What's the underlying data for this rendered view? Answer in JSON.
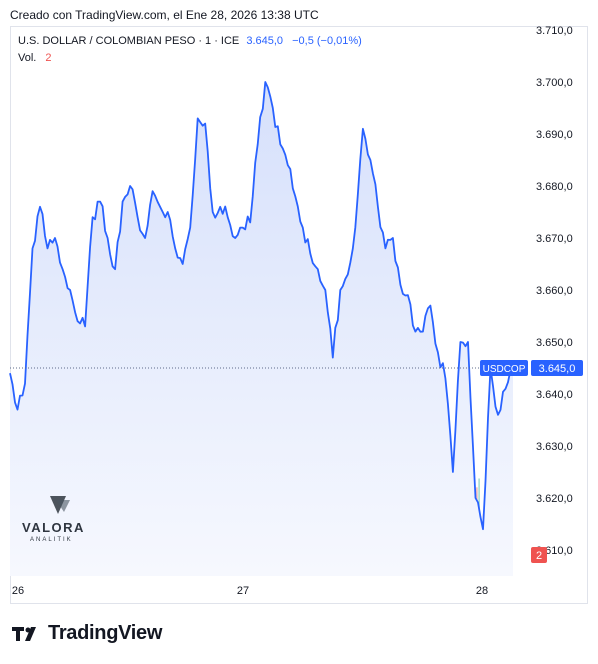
{
  "caption": "Creado con TradingView.com, el Ene 28, 2026 13:38 UTC",
  "legend": {
    "symbol": "U.S. DOLLAR / COLOMBIAN PESO · 1 · ICE",
    "last": "3.645,0",
    "change": "−0,5 (−0,01%)",
    "volume_label": "Vol.",
    "volume_value": "2"
  },
  "watermark": {
    "name": "VALORA",
    "sub": "ANALITIK"
  },
  "footer": {
    "brand": "TradingView"
  },
  "colors": {
    "line": "#2962ff",
    "area_top": "#dbe4fb",
    "area_bottom": "#f4f6fd",
    "vol_up": "#8fd4c7",
    "vol_down": "#f2a7a3",
    "price_tag": "#2962ff",
    "vol_tag": "#ef5350"
  },
  "chart_data": {
    "type": "area",
    "symbol_tag": "USDCOP",
    "price_label": "3.645,0",
    "volume_label": "2",
    "y_ticks": [
      "3.710,0",
      "3.700,0",
      "3.690,0",
      "3.680,0",
      "3.670,0",
      "3.660,0",
      "3.650,0",
      "3.640,0",
      "3.630,0",
      "3.620,0",
      "3.610,0"
    ],
    "x_ticks": [
      "26",
      "27",
      "28"
    ],
    "ylim": [
      3605,
      3710
    ],
    "last_price": 3645,
    "x": [
      0,
      0.5,
      1,
      1.5,
      2,
      2.5,
      3,
      3.5,
      4,
      4.5,
      5,
      5.5,
      6,
      6.5,
      7,
      7.5,
      8,
      8.5,
      9,
      9.5,
      10,
      10.5,
      11,
      11.5,
      12,
      12.5,
      13,
      13.5,
      14,
      14.5,
      15,
      15.5,
      16,
      16.5,
      17,
      17.5,
      18,
      18.5,
      19,
      19.5,
      20,
      20.5,
      21,
      21.5,
      22,
      22.5,
      23,
      23.5,
      24,
      24.5,
      25,
      25.5,
      26,
      26.5,
      27,
      27.5,
      28,
      28.5,
      29,
      29.5,
      30,
      30.5,
      31,
      31.5,
      32,
      32.5,
      33,
      33.5,
      34,
      34.5,
      35,
      35.5,
      36,
      36.5,
      37,
      37.5,
      38,
      38.5,
      39,
      39.5,
      40,
      40.5,
      41,
      41.5,
      42,
      42.5,
      43,
      43.5,
      44,
      44.5,
      45,
      45.5,
      46,
      46.5,
      47,
      47.5,
      48,
      48.5,
      49,
      49.5,
      50,
      50.5,
      51,
      51.5,
      52,
      52.5,
      53,
      53.5,
      54,
      54.5,
      55,
      55.5,
      56,
      56.5,
      57,
      57.5,
      58,
      58.5,
      59,
      59.5,
      60,
      60.5,
      61,
      61.5,
      62,
      62.5,
      63,
      63.5,
      64,
      64.5,
      65
    ],
    "values": [
      3644,
      3637,
      3642,
      3668,
      3676,
      3668,
      3670,
      3664,
      3660,
      3654,
      3653,
      3674,
      3677,
      3670,
      3664,
      3677,
      3680,
      3674,
      3670,
      3679,
      3676,
      3675,
      3668,
      3665,
      3672,
      3693,
      3692,
      3675,
      3676,
      3674,
      3670,
      3672,
      3673,
      3688,
      3700,
      3695,
      3688,
      3684,
      3678,
      3672,
      3667,
      3664,
      3660,
      3647,
      3660,
      3663,
      3672,
      3691,
      3685,
      3676,
      3668,
      3670,
      3661,
      3659,
      3652,
      3652,
      3657,
      3648,
      3643,
      3625,
      3650,
      3650,
      3620,
      3614,
      3645,
      3636,
      3641,
      3645,
      3645,
      3645,
      3645,
      3645,
      3645,
      3645,
      3645,
      3645,
      3645,
      3645,
      3645,
      3645,
      3645,
      3645,
      3645,
      3645,
      3645,
      3645,
      3645,
      3645,
      3645,
      3645,
      3645,
      3645,
      3645,
      3645,
      3645,
      3645,
      3645,
      3645,
      3645,
      3645,
      3645,
      3645,
      3645,
      3645,
      3645,
      3645,
      3645,
      3645,
      3645,
      3645,
      3645,
      3645,
      3645,
      3645,
      3645,
      3645,
      3645,
      3645,
      3645,
      3645,
      3645,
      3645,
      3645,
      3645,
      3645,
      3645,
      3645,
      3645,
      3645,
      3645,
      3645
    ]
  }
}
